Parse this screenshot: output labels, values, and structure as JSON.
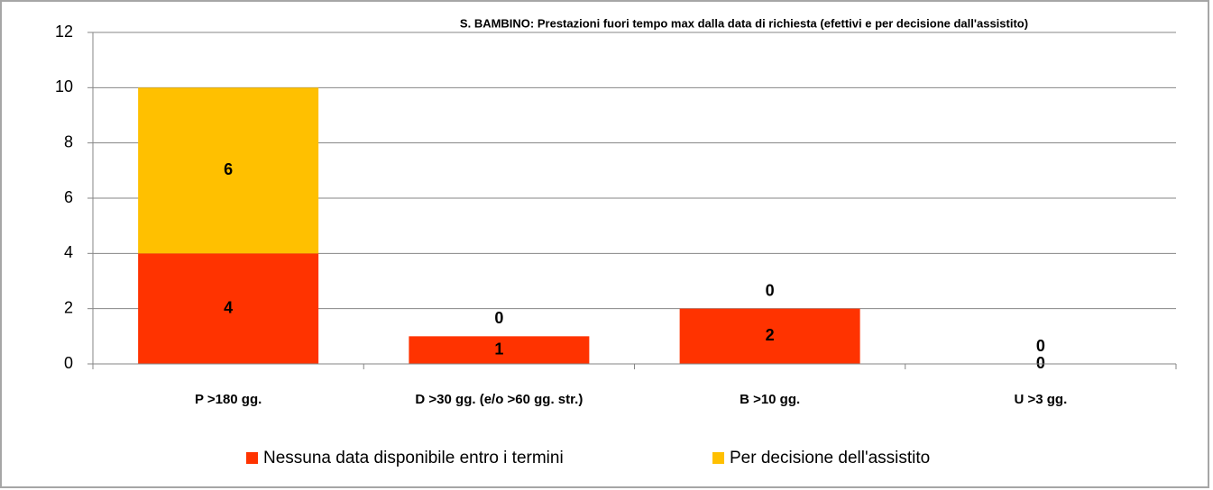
{
  "chart_data": {
    "type": "stacked_bar",
    "title": "S. BAMBINO: Prestazioni fuori tempo max dalla data di richiesta (efettivi e per decisione dall'assistito)",
    "categories": [
      "P >180 gg.",
      "D >30 gg. (e/o >60 gg. str.)",
      "B >10 gg.",
      "U >3 gg."
    ],
    "series": [
      {
        "name": "Nessuna data disponibile entro i termini",
        "color": "#ff3300",
        "values": [
          4,
          1,
          2,
          0
        ]
      },
      {
        "name": "Per decisione dell'assistito",
        "color": "#ffc000",
        "values": [
          6,
          0,
          0,
          0
        ]
      }
    ],
    "ylim": [
      0,
      12
    ],
    "yticks": [
      0,
      2,
      4,
      6,
      8,
      10,
      12
    ],
    "grid": true,
    "legend": "bottom"
  }
}
